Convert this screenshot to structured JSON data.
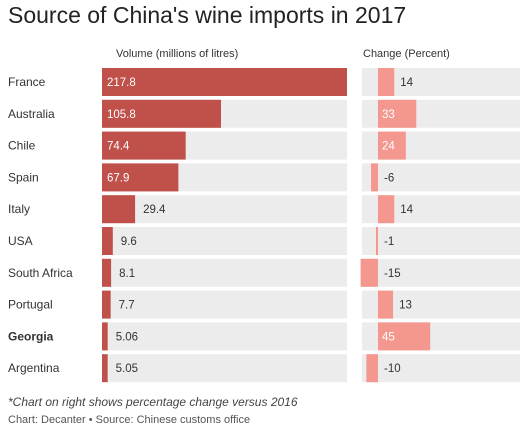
{
  "header": {
    "title": "Source of China's wine imports in 2017"
  },
  "chart_data": {
    "type": "bar",
    "categories": [
      "France",
      "Australia",
      "Chile",
      "Spain",
      "Italy",
      "USA",
      "South Africa",
      "Portugal",
      "Georgia",
      "Argentina"
    ],
    "highlighted_category": "Georgia",
    "volume": {
      "header": "Volume (millions of litres)",
      "values": [
        217.8,
        105.8,
        74.4,
        67.9,
        29.4,
        9.6,
        8.1,
        7.7,
        5.06,
        5.05
      ],
      "labels": [
        "217.8",
        "105.8",
        "74.4",
        "67.9",
        "29.4",
        "9.6",
        "8.1",
        "7.7",
        "5.06",
        "5.05"
      ],
      "xlim": [
        0,
        217.8
      ],
      "color": "#c0504a"
    },
    "change": {
      "header": "Change (Percent)",
      "values": [
        14,
        33,
        24,
        -6,
        14,
        -1,
        -15,
        13,
        45,
        -10
      ],
      "labels": [
        "14",
        "33",
        "24",
        "-6",
        "14",
        "-1",
        "-15",
        "13",
        "45",
        "-10"
      ],
      "xlim": [
        -15,
        45
      ],
      "color": "#f4978e"
    },
    "row_background": "#ececec"
  },
  "footer": {
    "footnote": "*Chart on right shows percentage change versus 2016",
    "source": "Chart: Decanter • Source: Chinese customs office"
  }
}
